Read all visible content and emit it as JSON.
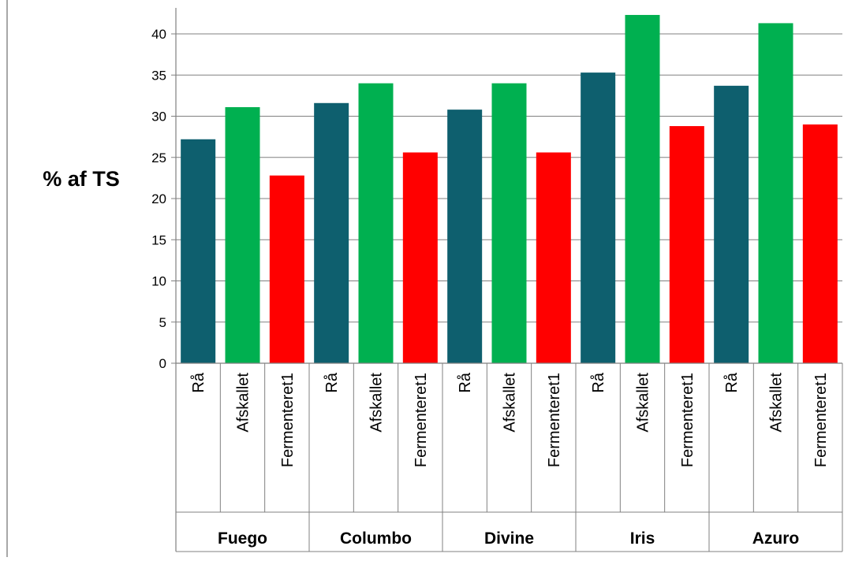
{
  "chart_data": {
    "type": "bar",
    "ylabel": "% af TS",
    "ylim": [
      0,
      43
    ],
    "yticks": [
      0,
      5,
      10,
      15,
      20,
      25,
      30,
      35,
      40
    ],
    "grid": true,
    "groups": [
      "Fuego",
      "Columbo",
      "Divine",
      "Iris",
      "Azuro"
    ],
    "subcategories": [
      "Rå",
      "Afskallet",
      "Fermenteret1"
    ],
    "colors": [
      "#0e5f6e",
      "#00b050",
      "#ff0000"
    ],
    "values": [
      [
        27.2,
        31.1,
        22.8
      ],
      [
        31.6,
        34.0,
        25.6
      ],
      [
        30.8,
        34.0,
        25.6
      ],
      [
        35.3,
        42.3,
        28.8
      ],
      [
        33.7,
        41.3,
        29.0
      ]
    ]
  }
}
